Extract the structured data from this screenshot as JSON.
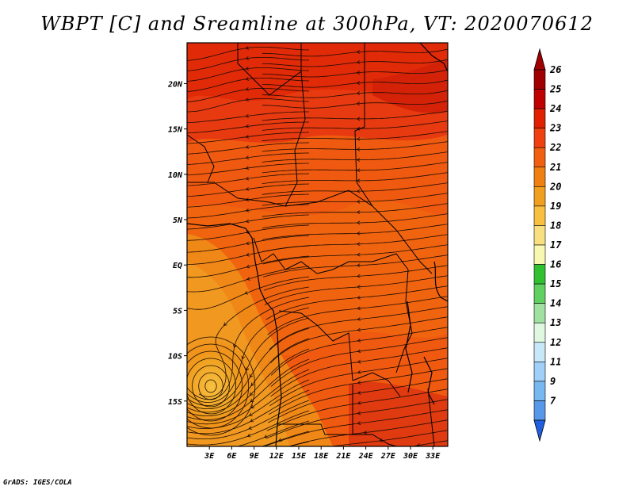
{
  "title": "WBPT [C] and Sreamline at 300hPa, VT: 2020070612",
  "credit": "GrADS: IGES/COLA",
  "map": {
    "lon_range": [
      0,
      35
    ],
    "lat_range": [
      -20,
      24.5
    ],
    "lon_ticks": [
      {
        "value": 3,
        "label": "3E"
      },
      {
        "value": 6,
        "label": "6E"
      },
      {
        "value": 9,
        "label": "9E"
      },
      {
        "value": 12,
        "label": "12E"
      },
      {
        "value": 15,
        "label": "15E"
      },
      {
        "value": 18,
        "label": "18E"
      },
      {
        "value": 21,
        "label": "21E"
      },
      {
        "value": 24,
        "label": "24E"
      },
      {
        "value": 27,
        "label": "27E"
      },
      {
        "value": 30,
        "label": "30E"
      },
      {
        "value": 33,
        "label": "33E"
      }
    ],
    "lat_ticks": [
      {
        "value": 20,
        "label": "20N"
      },
      {
        "value": 15,
        "label": "15N"
      },
      {
        "value": 10,
        "label": "10N"
      },
      {
        "value": 5,
        "label": "5N"
      },
      {
        "value": 0,
        "label": "EQ"
      },
      {
        "value": -5,
        "label": "5S"
      },
      {
        "value": -10,
        "label": "10S"
      },
      {
        "value": -15,
        "label": "15S"
      }
    ]
  },
  "colorbar": {
    "levels": [
      {
        "label": "26",
        "color": "#a00000"
      },
      {
        "label": "25",
        "color": "#c00000"
      },
      {
        "label": "24",
        "color": "#e02000"
      },
      {
        "label": "23",
        "color": "#f04010"
      },
      {
        "label": "22",
        "color": "#f06010"
      },
      {
        "label": "21",
        "color": "#f08010"
      },
      {
        "label": "20",
        "color": "#f0a020"
      },
      {
        "label": "19",
        "color": "#f8c040"
      },
      {
        "label": "18",
        "color": "#f8e080"
      },
      {
        "label": "17",
        "color": "#f8f8b0"
      },
      {
        "label": "16",
        "color": "#30c030"
      },
      {
        "label": "15",
        "color": "#60d060"
      },
      {
        "label": "14",
        "color": "#a0e0a0"
      },
      {
        "label": "13",
        "color": "#e0f8e0"
      },
      {
        "label": "12",
        "color": "#c8e8f8"
      },
      {
        "label": "11",
        "color": "#a0d0f8"
      },
      {
        "label": "9",
        "color": "#78b8f0"
      },
      {
        "label": "7",
        "color": "#5898e8"
      }
    ],
    "bottom_arrow_color": "#2060e0",
    "top_arrow_color": "#a00000"
  }
}
